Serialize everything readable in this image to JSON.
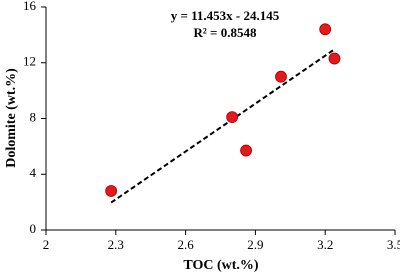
{
  "chart_data": {
    "type": "scatter",
    "x_label": "TOC (wt.%)",
    "y_label": "Dolomite (wt.%)",
    "annotations": [
      "y = 11.453x - 24.145",
      "R² = 0.8548"
    ],
    "series": [
      {
        "name": "Dolomite",
        "color": "#e31a1c",
        "x": [
          2.28,
          2.8,
          2.86,
          3.01,
          3.2,
          3.24
        ],
        "values": [
          2.8,
          8.1,
          5.7,
          11.0,
          14.4,
          12.3
        ]
      }
    ],
    "trendline": true,
    "xlim": [
      2,
      3.5
    ],
    "xticks": [
      2,
      2.3,
      2.6,
      2.9,
      3.2,
      3.5
    ],
    "ylim": [
      0,
      16
    ],
    "yticks": [
      0,
      4,
      8,
      12,
      16
    ],
    "grid": false
  }
}
